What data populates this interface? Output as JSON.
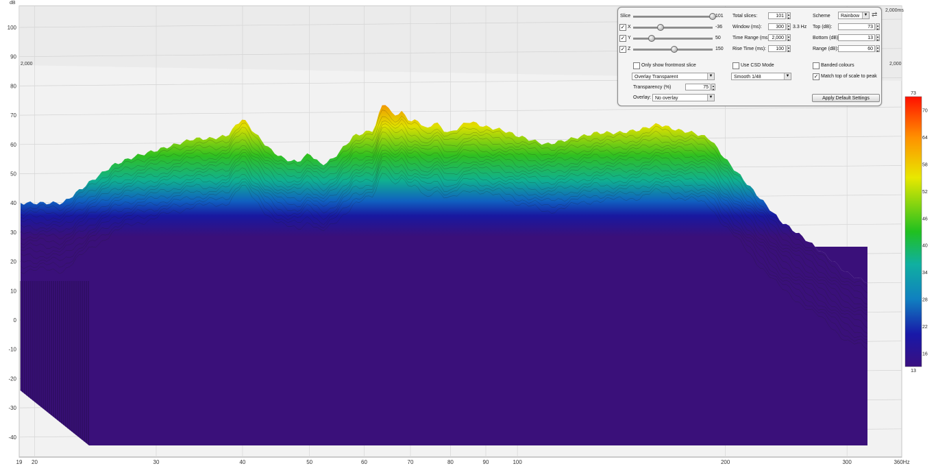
{
  "chart_data": {
    "type": "area",
    "title": "",
    "ylabel": "dB",
    "xunit": "Hz",
    "zunit": "ms",
    "ylim": [
      -45,
      105
    ],
    "xlim": [
      19,
      360
    ],
    "y_ticks": [
      100,
      90,
      80,
      70,
      60,
      50,
      40,
      30,
      20,
      10,
      0,
      -10,
      -20,
      -30,
      -40
    ],
    "x_ticks": [
      {
        "v": 19,
        "label": "19"
      },
      {
        "v": 20,
        "label": "20"
      },
      {
        "v": 30,
        "label": "30"
      },
      {
        "v": 40,
        "label": "40"
      },
      {
        "v": 50,
        "label": "50"
      },
      {
        "v": 60,
        "label": "60"
      },
      {
        "v": 70,
        "label": "70"
      },
      {
        "v": 80,
        "label": "80"
      },
      {
        "v": 90,
        "label": "90"
      },
      {
        "v": 100,
        "label": "100"
      },
      {
        "v": 200,
        "label": "200"
      },
      {
        "v": 300,
        "label": "300"
      },
      {
        "v": 360,
        "label": "360Hz"
      }
    ],
    "time_labels": [
      "2,000",
      "2,000",
      "2,000ms"
    ],
    "colorbar": {
      "top": 73,
      "bottom": 13,
      "ticks": [
        "73",
        "70",
        "64",
        "58",
        "52",
        "46",
        "40",
        "34",
        "28",
        "22",
        "16",
        "13"
      ]
    },
    "series": [
      {
        "x": [
          19,
          20,
          22,
          24,
          26,
          28,
          30,
          32,
          34,
          36,
          38,
          40,
          42,
          44,
          46,
          48,
          50,
          52,
          54,
          56,
          58,
          60,
          62,
          64,
          66,
          68,
          70,
          72,
          74,
          76,
          78,
          80,
          85,
          90,
          95,
          100,
          110,
          120,
          130,
          140,
          150,
          160,
          170,
          180,
          190,
          200,
          220,
          240,
          260,
          280,
          300,
          320,
          340,
          360
        ],
        "y": [
          40,
          40,
          40,
          47,
          53,
          56,
          58,
          60,
          62,
          62,
          63,
          69,
          63,
          58,
          55,
          54,
          57,
          53,
          55,
          59,
          63,
          64,
          65,
          75,
          70,
          71,
          68,
          68,
          65,
          68,
          65,
          64,
          68,
          66,
          65,
          63,
          60,
          62,
          64,
          64,
          65,
          67,
          65,
          64,
          62,
          55,
          44,
          34,
          28,
          22,
          16,
          13,
          13,
          13
        ]
      }
    ]
  },
  "controls": {
    "slice_label": "Slice",
    "slice_value": "101",
    "x_label": "X",
    "x_value": "-36",
    "y_label": "Y",
    "y_value": "50",
    "z_label": "Z",
    "z_value": "150",
    "total_slices_label": "Total slices:",
    "total_slices": "101",
    "window_label": "Window (ms):",
    "window": "300",
    "window_hz": "3.3 Hz",
    "time_range_label": "Time Range (ms):",
    "time_range": "2,000",
    "rise_time_label": "Rise Time (ms):",
    "rise_time": "100",
    "scheme_label": "Scheme",
    "scheme": "Rainbow",
    "top_label": "Top (dB):",
    "top": "73",
    "bottom_label": "Bottom (dB):",
    "bottom": "13",
    "range_label": "Range (dB):",
    "range": "60",
    "frontmost_label": "Only show frontmost slice",
    "csd_label": "Use CSD Mode",
    "banded_label": "Banded colours",
    "match_label": "Match top of scale to peak",
    "overlay_mode": "Overlay Transparent",
    "smoothing": "Smooth 1/48",
    "transparency_label": "Transparency (%)",
    "transparency": "75",
    "overlay_label": "Overlay:",
    "overlay": "No overlay",
    "apply_label": "Apply Default Settings"
  }
}
